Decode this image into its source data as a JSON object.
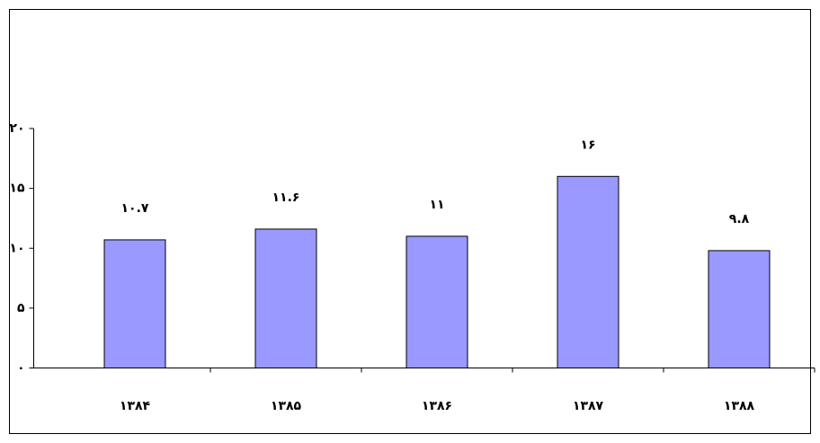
{
  "chart_data": {
    "type": "bar",
    "categories": [
      "۱۳۸۴",
      "۱۳۸۵",
      "۱۳۸۶",
      "۱۳۸۷",
      "۱۳۸۸"
    ],
    "values": [
      10.7,
      11.6,
      11,
      16,
      9.8
    ],
    "value_labels": [
      "۱۰.۷",
      "۱۱.۶",
      "۱۱",
      "۱۶",
      "۹.۸"
    ],
    "color": "#9999ff",
    "ylim": [
      0,
      20
    ],
    "yticks": [
      {
        "value": 0,
        "label": "۰"
      },
      {
        "value": 5,
        "label": "۵"
      },
      {
        "value": 10,
        "label": "۱۰"
      },
      {
        "value": 15,
        "label": "۱۵"
      },
      {
        "value": 20,
        "label": "۲۰"
      }
    ],
    "grid": false
  }
}
